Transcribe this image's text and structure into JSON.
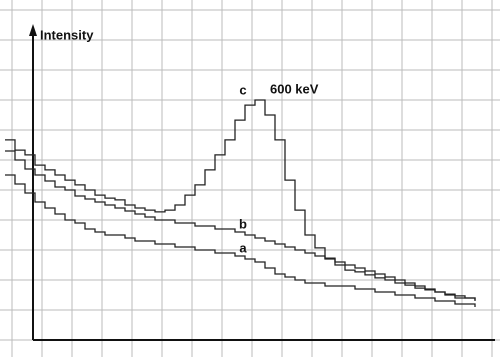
{
  "chart_data": {
    "type": "line",
    "y_label": "Intensity",
    "annotation": "600 keV",
    "ylim": [
      0,
      100
    ],
    "series": [
      {
        "name": "a",
        "color": "#222222",
        "values": [
          55,
          52,
          49,
          46,
          44,
          42,
          40,
          39,
          37,
          36,
          35,
          35,
          34,
          33,
          33,
          32,
          32,
          31,
          31,
          30,
          30,
          29,
          29,
          28,
          27,
          26,
          24,
          22,
          21,
          20,
          19,
          19,
          18,
          18,
          18,
          17,
          17,
          16,
          16,
          15,
          15,
          14,
          14,
          13,
          13,
          12,
          12,
          11
        ]
      },
      {
        "name": "b",
        "color": "#222222",
        "values": [
          63,
          60,
          57,
          55,
          53,
          51,
          50,
          48,
          47,
          46,
          45,
          44,
          43,
          42,
          41,
          40,
          40,
          39,
          39,
          38,
          38,
          37,
          37,
          36,
          35,
          34,
          33,
          32,
          31,
          30,
          29,
          28,
          27,
          26,
          25,
          24,
          23,
          22,
          21,
          20,
          19,
          18,
          17,
          16,
          15,
          14,
          14,
          13
        ]
      },
      {
        "name": "c",
        "color": "#222222",
        "values": [
          66.7,
          63.3,
          61.7,
          58.3,
          56.7,
          55,
          53.3,
          51.7,
          50,
          48.3,
          47.3,
          46.7,
          45,
          44,
          43.3,
          42.7,
          43.3,
          45,
          48.3,
          51.7,
          56.7,
          61.7,
          66.7,
          73.3,
          78.3,
          80,
          75,
          66.7,
          53.3,
          43.3,
          35,
          30.7,
          27.3,
          25,
          23.3,
          22.7,
          21.7,
          20.7,
          20,
          19,
          18.3,
          17.3,
          16.7,
          16,
          15.3,
          14.7,
          14,
          13.3
        ]
      }
    ]
  }
}
